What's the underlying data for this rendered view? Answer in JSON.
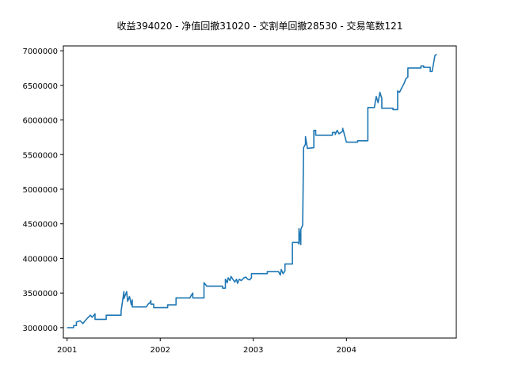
{
  "chart_data": {
    "type": "line",
    "title": "收益394020 - 净值回撤31020 - 交割单回撤28530 - 交易笔数121",
    "xlabel": "",
    "ylabel": "",
    "xlim": [
      2000.96,
      2005.18
    ],
    "ylim": [
      2850000,
      7070000
    ],
    "x_ticks": [
      {
        "value": 2001,
        "label": "2001"
      },
      {
        "value": 2002,
        "label": "2002"
      },
      {
        "value": 2003,
        "label": "2003"
      },
      {
        "value": 2004,
        "label": "2004"
      }
    ],
    "y_ticks": [
      {
        "value": 3000000,
        "label": "3000000"
      },
      {
        "value": 3500000,
        "label": "3500000"
      },
      {
        "value": 4000000,
        "label": "4000000"
      },
      {
        "value": 4500000,
        "label": "4500000"
      },
      {
        "value": 5000000,
        "label": "5000000"
      },
      {
        "value": 5500000,
        "label": "5500000"
      },
      {
        "value": 6000000,
        "label": "6000000"
      },
      {
        "value": 6500000,
        "label": "6500000"
      },
      {
        "value": 7000000,
        "label": "7000000"
      }
    ],
    "grid": false,
    "colors": {
      "series": "#1f77b4"
    },
    "series": [
      {
        "name": "",
        "x": [
          2001.0,
          2001.07,
          2001.07,
          2001.1,
          2001.1,
          2001.14,
          2001.17,
          2001.2,
          2001.22,
          2001.25,
          2001.27,
          2001.3,
          2001.3,
          2001.42,
          2001.42,
          2001.58,
          2001.58,
          2001.61,
          2001.61,
          2001.64,
          2001.65,
          2001.67,
          2001.69,
          2001.7,
          2001.7,
          2001.72,
          2001.72,
          2001.85,
          2001.87,
          2001.89,
          2001.9,
          2001.9,
          2001.93,
          2001.93,
          2002.08,
          2002.08,
          2002.17,
          2002.17,
          2002.32,
          2002.33,
          2002.35,
          2002.35,
          2002.47,
          2002.47,
          2002.5,
          2002.5,
          2002.67,
          2002.67,
          2002.7,
          2002.7,
          2002.72,
          2002.73,
          2002.75,
          2002.76,
          2002.78,
          2002.8,
          2002.82,
          2002.83,
          2002.85,
          2002.87,
          2002.9,
          2002.92,
          2002.94,
          2002.96,
          2002.98,
          2002.98,
          2003.15,
          2003.15,
          2003.27,
          2003.29,
          2003.3,
          2003.32,
          2003.34,
          2003.34,
          2003.42,
          2003.42,
          2003.48,
          2003.49,
          2003.49,
          2003.51,
          2003.51,
          2003.53,
          2003.54,
          2003.56,
          2003.56,
          2003.58,
          2003.58,
          2003.65,
          2003.65,
          2003.67,
          2003.67,
          2003.85,
          2003.85,
          2003.88,
          2003.88,
          2003.9,
          2003.92,
          2003.96,
          2003.96,
          2004.0,
          2004.0,
          2004.12,
          2004.12,
          2004.23,
          2004.23,
          2004.3,
          2004.32,
          2004.34,
          2004.36,
          2004.38,
          2004.38,
          2004.5,
          2004.5,
          2004.55,
          2004.55,
          2004.57,
          2004.6,
          2004.62,
          2004.64,
          2004.66,
          2004.66,
          2004.8,
          2004.8,
          2004.83,
          2004.83,
          2004.9,
          2004.9,
          2004.92,
          2004.94,
          2004.95,
          2004.97
        ],
        "y": [
          3000000,
          3000000,
          3030000,
          3030000,
          3080000,
          3100000,
          3060000,
          3110000,
          3140000,
          3180000,
          3150000,
          3200000,
          3120000,
          3120000,
          3180000,
          3180000,
          3240000,
          3520000,
          3420000,
          3520000,
          3380000,
          3450000,
          3330000,
          3400000,
          3300000,
          3300000,
          3300000,
          3300000,
          3340000,
          3360000,
          3390000,
          3340000,
          3340000,
          3290000,
          3290000,
          3330000,
          3330000,
          3430000,
          3430000,
          3460000,
          3500000,
          3430000,
          3430000,
          3650000,
          3600000,
          3600000,
          3600000,
          3570000,
          3570000,
          3700000,
          3650000,
          3720000,
          3680000,
          3740000,
          3700000,
          3660000,
          3700000,
          3640000,
          3700000,
          3680000,
          3720000,
          3730000,
          3700000,
          3690000,
          3720000,
          3780000,
          3780000,
          3810000,
          3810000,
          3760000,
          3840000,
          3780000,
          3820000,
          3920000,
          3920000,
          4230000,
          4230000,
          4210000,
          4430000,
          4200000,
          4420000,
          4480000,
          5600000,
          5650000,
          5760000,
          5600000,
          5590000,
          5600000,
          5850000,
          5850000,
          5780000,
          5780000,
          5820000,
          5820000,
          5790000,
          5850000,
          5800000,
          5840000,
          5880000,
          5680000,
          5680000,
          5680000,
          5700000,
          5700000,
          6180000,
          6180000,
          6340000,
          6250000,
          6400000,
          6310000,
          6170000,
          6170000,
          6150000,
          6150000,
          6420000,
          6400000,
          6480000,
          6530000,
          6600000,
          6620000,
          6750000,
          6750000,
          6780000,
          6780000,
          6760000,
          6760000,
          6700000,
          6700000,
          6850000,
          6930000,
          6950000
        ]
      }
    ]
  }
}
